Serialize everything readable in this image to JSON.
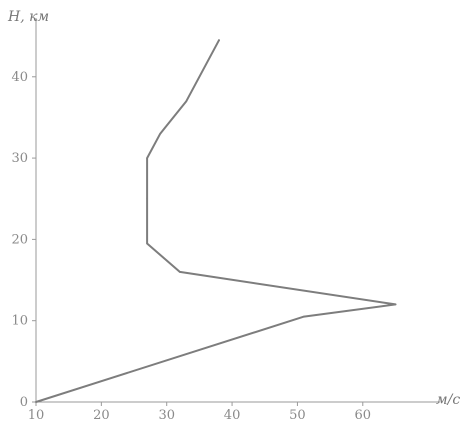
{
  "chart_data": {
    "type": "line",
    "ylabel": "H, км",
    "xlabel": "м/с",
    "xlim": [
      10,
      66
    ],
    "ylim": [
      0,
      46
    ],
    "xticks": [
      10,
      20,
      30,
      40,
      50,
      60
    ],
    "yticks": [
      0,
      10,
      20,
      30,
      40
    ],
    "series": [
      {
        "points": [
          [
            10,
            0
          ],
          [
            51,
            10.5
          ],
          [
            65,
            12
          ],
          [
            32,
            16
          ],
          [
            27,
            19.5
          ],
          [
            27,
            25
          ],
          [
            27,
            30
          ],
          [
            29,
            33
          ],
          [
            33,
            37
          ],
          [
            38,
            44.5
          ]
        ]
      }
    ],
    "colors": {
      "line": "#7d7d7d",
      "axis": "#9a9a9a",
      "text": "#8a8a8a"
    }
  }
}
